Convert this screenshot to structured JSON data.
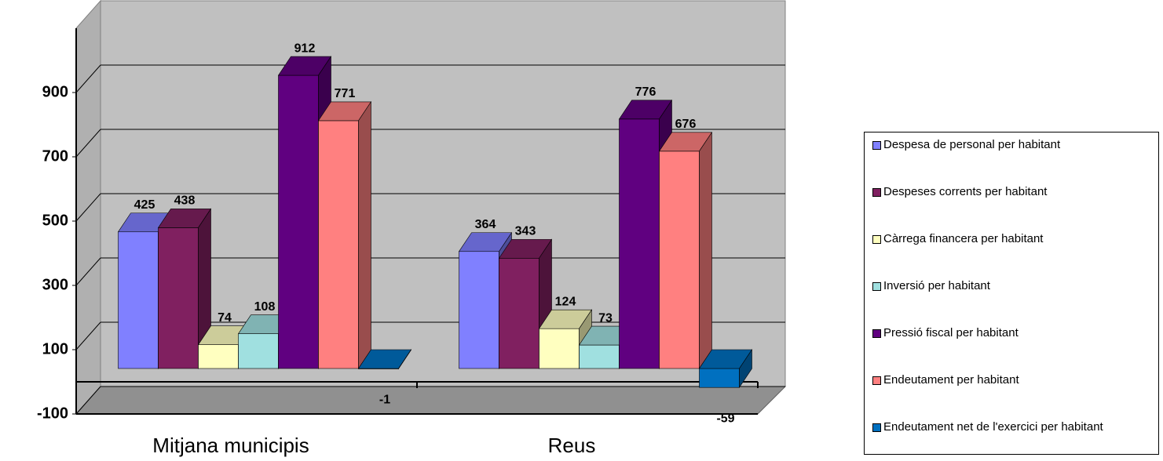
{
  "chart_data": {
    "type": "bar3d",
    "categories": [
      "Mitjana municipis",
      "Reus"
    ],
    "series": [
      {
        "name": "Despesa de personal per habitant",
        "color": "#8080ff",
        "values": [
          425,
          364
        ]
      },
      {
        "name": "Despeses corrents per habitant",
        "color": "#802060",
        "values": [
          438,
          343
        ]
      },
      {
        "name": "Càrrega financera per habitant",
        "color": "#ffffc0",
        "values": [
          74,
          124
        ]
      },
      {
        "name": "Inversió per habitant",
        "color": "#a0e0e0",
        "values": [
          108,
          73
        ]
      },
      {
        "name": "Pressió fiscal per habitant",
        "color": "#600080",
        "values": [
          912,
          776
        ]
      },
      {
        "name": "Endeutament per habitant",
        "color": "#ff8080",
        "values": [
          771,
          676
        ]
      },
      {
        "name": "Endeutament net de l'exercici per habitant",
        "color": "#0070c0",
        "values": [
          -1,
          -59
        ]
      }
    ],
    "ylim": [
      -100,
      1100
    ],
    "yticks": [
      -100,
      100,
      300,
      500,
      700,
      900
    ],
    "grid": true,
    "legend": "right"
  }
}
